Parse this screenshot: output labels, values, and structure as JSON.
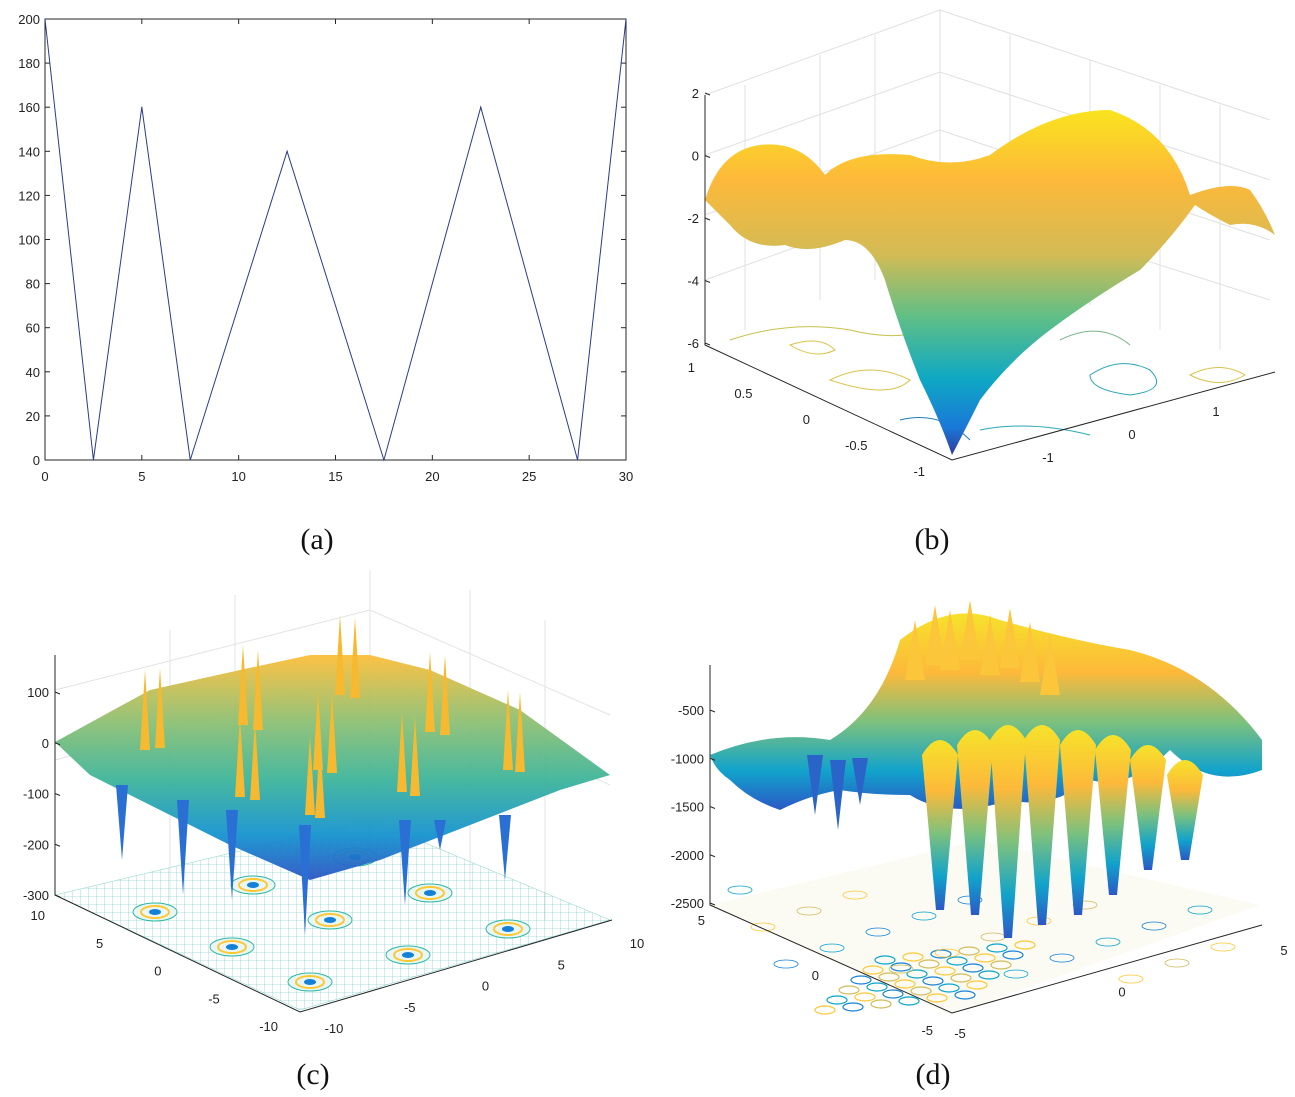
{
  "figure": {
    "captions": [
      "(a)",
      "(b)",
      "(c)",
      "(d)"
    ]
  },
  "colors": {
    "line": "#2b3a8f",
    "axis": "#262626",
    "grid": "#dcdcdc",
    "parula": [
      "#352a87",
      "#0f5cdd",
      "#1481d6",
      "#06a4ca",
      "#2eb7a4",
      "#87bf77",
      "#d1bb59",
      "#fec832",
      "#f9fb0e"
    ]
  },
  "chart_data": [
    {
      "id": "a",
      "type": "line",
      "title": "",
      "xlabel": "",
      "ylabel": "",
      "xlim": [
        0,
        30
      ],
      "ylim": [
        0,
        200
      ],
      "xticks": [
        0,
        5,
        10,
        15,
        20,
        25,
        30
      ],
      "yticks": [
        0,
        20,
        40,
        60,
        80,
        100,
        120,
        140,
        160,
        180,
        200
      ],
      "grid": false,
      "series": [
        {
          "name": "line",
          "x": [
            0,
            2.5,
            5,
            7.5,
            12.5,
            17.5,
            22.5,
            27.5,
            30
          ],
          "y": [
            200,
            0,
            160,
            0,
            140,
            0,
            160,
            0,
            200
          ]
        }
      ]
    },
    {
      "id": "b",
      "type": "surface3d",
      "title": "",
      "zlim": [
        -6,
        2
      ],
      "zticks": [
        -6,
        -4,
        -2,
        0,
        2
      ],
      "yticks": [
        -1,
        -0.5,
        0,
        0.5,
        1
      ],
      "xticks": [
        -1,
        0,
        1
      ],
      "contour_projection": true,
      "grid": true,
      "min_value_approx": -6
    },
    {
      "id": "c",
      "type": "surface3d",
      "title": "",
      "zlim": [
        -300,
        180
      ],
      "zticks": [
        -300,
        -200,
        -100,
        0,
        100
      ],
      "yticks": [
        -10,
        -5,
        0,
        5,
        10
      ],
      "xticks": [
        -10,
        -5,
        0,
        5,
        10
      ],
      "contour_projection": true,
      "grid": true,
      "min_value_approx": -290
    },
    {
      "id": "d",
      "type": "surface3d",
      "title": "",
      "zlim": [
        -2500,
        0
      ],
      "zticks": [
        -2500,
        -2000,
        -1500,
        -1000,
        -500
      ],
      "yticks": [
        -5,
        0,
        5
      ],
      "xticks": [
        -5,
        0,
        5
      ],
      "contour_projection": true,
      "grid": false,
      "min_value_approx": -2400
    }
  ]
}
